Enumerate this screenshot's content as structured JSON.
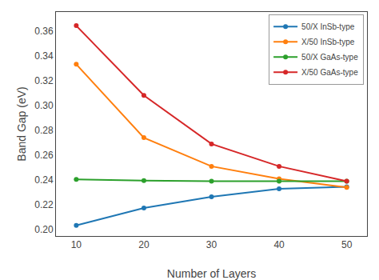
{
  "chart_data": {
    "type": "line",
    "xlabel": "Number of Layers",
    "ylabel": "Band Gap (eV)",
    "x": [
      10,
      20,
      30,
      40,
      50
    ],
    "series": [
      {
        "name": "50/X InSb-type",
        "color": "#1f77b4",
        "values": [
          0.2035,
          0.2175,
          0.2265,
          0.233,
          0.2345
        ]
      },
      {
        "name": "X/50 InSb-type",
        "color": "#ff7f0e",
        "values": [
          0.333,
          0.274,
          0.251,
          0.241,
          0.234
        ]
      },
      {
        "name": "50/X GaAs-type",
        "color": "#2ca02c",
        "values": [
          0.2405,
          0.2395,
          0.239,
          0.239,
          0.239
        ]
      },
      {
        "name": "X/50 GaAs-type",
        "color": "#d62728",
        "values": [
          0.364,
          0.308,
          0.269,
          0.251,
          0.239
        ]
      }
    ],
    "xlim": [
      7,
      53
    ],
    "ylim": [
      0.195,
      0.375
    ],
    "xticks": [
      10,
      20,
      30,
      40,
      50
    ],
    "yticks": [
      {
        "value": 0.2,
        "label": "0.20"
      },
      0.22,
      0.24,
      0.26,
      0.28,
      {
        "value": 0.3,
        "label": "0.30"
      },
      0.32,
      0.34,
      0.36
    ],
    "legend": "upper right",
    "marker": "circle",
    "line_style": "solid",
    "grid": false
  }
}
